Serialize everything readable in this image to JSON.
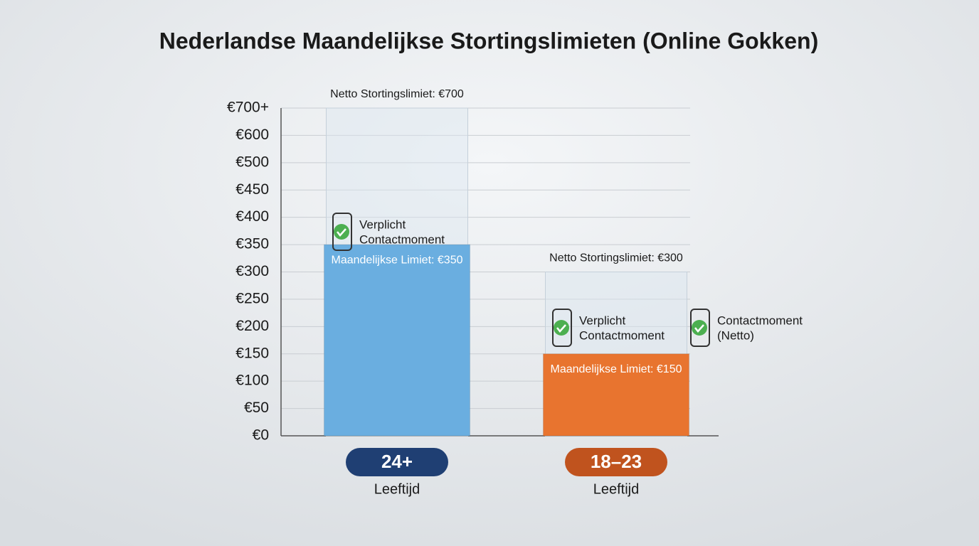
{
  "chart_data": {
    "type": "bar",
    "title": "Nederlandse Maandelijkse Stortingslimieten (Online Gokken)",
    "categories": [
      "24+",
      "18–23"
    ],
    "category_colors": [
      "#1f3f73",
      "#c0531e"
    ],
    "x_sublabel": "Leeftijd",
    "values": [
      350,
      150
    ],
    "value_labels": [
      "Maandelijkse Limiet: €350",
      "Maandelijkse Limiet: €150"
    ],
    "colors": [
      "#6aaee0",
      "#e8742f"
    ],
    "net_values": [
      700,
      300
    ],
    "net_value_labels": [
      "Netto Stortingslimiet: €700",
      "Netto Stortingslimiet: €300"
    ],
    "ylim": [
      0,
      700
    ],
    "yticks": [
      {
        "value": 0,
        "label": "€0"
      },
      {
        "value": 50,
        "label": "€50"
      },
      {
        "value": 100,
        "label": "€100"
      },
      {
        "value": 150,
        "label": "€150"
      },
      {
        "value": 200,
        "label": "€200"
      },
      {
        "value": 250,
        "label": "€250"
      },
      {
        "value": 300,
        "label": "€300"
      },
      {
        "value": 350,
        "label": "€350"
      },
      {
        "value": 400,
        "label": "€400"
      },
      {
        "value": 450,
        "label": "€450"
      },
      {
        "value": 500,
        "label": "€500"
      },
      {
        "value": 600,
        "label": "€600"
      },
      {
        "value": 700,
        "label": "€700+"
      }
    ],
    "grid": true,
    "annotations": [
      {
        "lines": [
          "Verplicht",
          "Contactmoment"
        ]
      },
      {
        "lines": [
          "Verplicht",
          "Contactmoment"
        ]
      },
      {
        "lines": [
          "Contactmoment",
          "(Netto)"
        ]
      }
    ]
  }
}
